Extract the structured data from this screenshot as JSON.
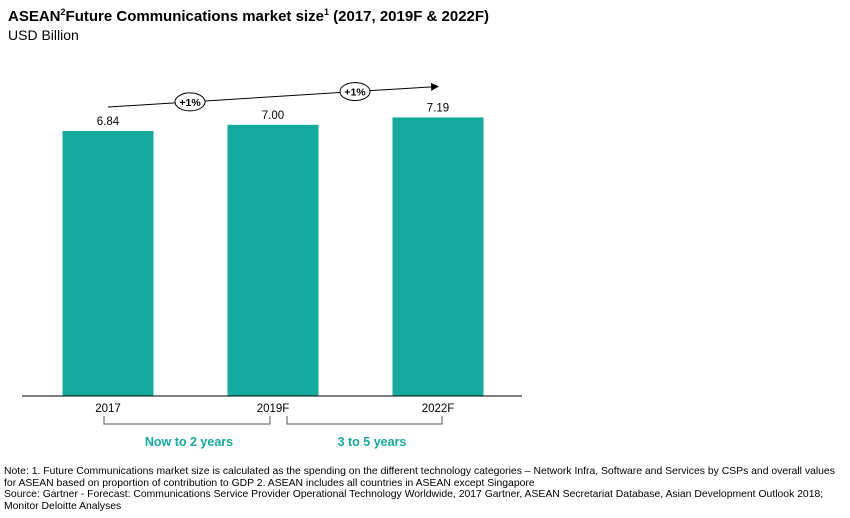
{
  "chart_data": {
    "type": "bar",
    "title_main": "ASEAN",
    "title_sup1": "2",
    "title_mid": "Future Communications market size",
    "title_sup2": "1",
    "title_tail": " (2017, 2019F & 2022F)",
    "subtitle": "USD Billion",
    "categories": [
      "2017",
      "2019F",
      "2022F"
    ],
    "values": [
      6.84,
      7.0,
      7.19
    ],
    "value_labels": [
      "6.84",
      "7.00",
      "7.19"
    ],
    "bar_color": "#16A99E",
    "growth_labels": [
      "+1%",
      "+1%"
    ],
    "period_labels": [
      "Now to 2 years",
      "3 to 5 years"
    ],
    "period_color": "#16A99E",
    "ylim": [
      0,
      7.5
    ],
    "grid": false,
    "legend": "none"
  },
  "notes": {
    "note": "Note:  1. Future Communications market size is calculated as the spending on the different technology categories – Network Infra, Software and Services by CSPs  and overall values for ASEAN based on proportion of contribution to GDP 2. ASEAN includes all countries in ASEAN except Singapore",
    "source": "Source: Gartner - Forecast: Communications Service Provider Operational Technology Worldwide, 2017 Gartner, ASEAN Secretariat Database, Asian Development Outlook 2018; Monitor Deloitte Analyses"
  }
}
